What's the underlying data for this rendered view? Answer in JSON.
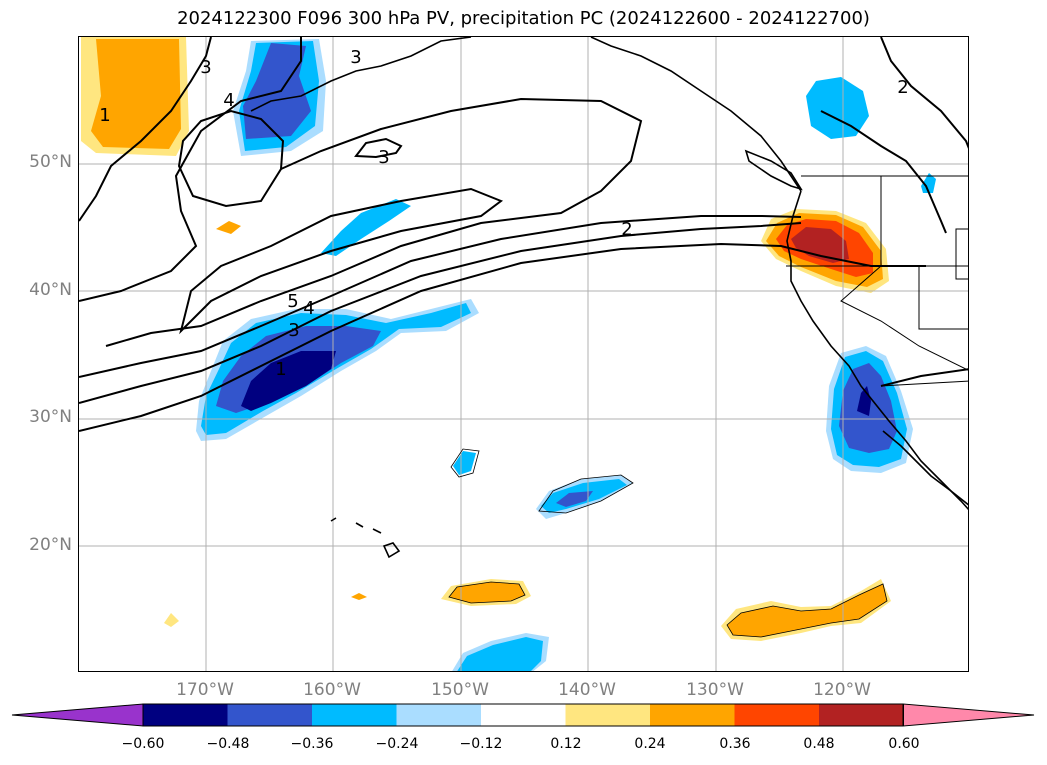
{
  "title": "2024122300 F096 300 hPa PV, precipitation PC (2024122600 - 2024122700)",
  "lat_labels": [
    "50°N",
    "40°N",
    "30°N",
    "20°N"
  ],
  "lon_labels": [
    "170°W",
    "160°W",
    "150°W",
    "140°W",
    "130°W",
    "120°W"
  ],
  "contour_labels": [
    "1",
    "3",
    "4",
    "3",
    "2",
    "5",
    "4",
    "3",
    "1",
    "3",
    "2"
  ],
  "colorbar": {
    "ticks": [
      "−0.60",
      "−0.48",
      "−0.36",
      "−0.24",
      "−0.12",
      "0.12",
      "0.24",
      "0.36",
      "0.48",
      "0.60"
    ],
    "colors": [
      "#9933cc",
      "#000080",
      "#3355cc",
      "#00bbff",
      "#aaddff",
      "#ffffff",
      "#ffe680",
      "#ffa500",
      "#ff4500",
      "#b22222",
      "#ff88aa"
    ]
  }
}
